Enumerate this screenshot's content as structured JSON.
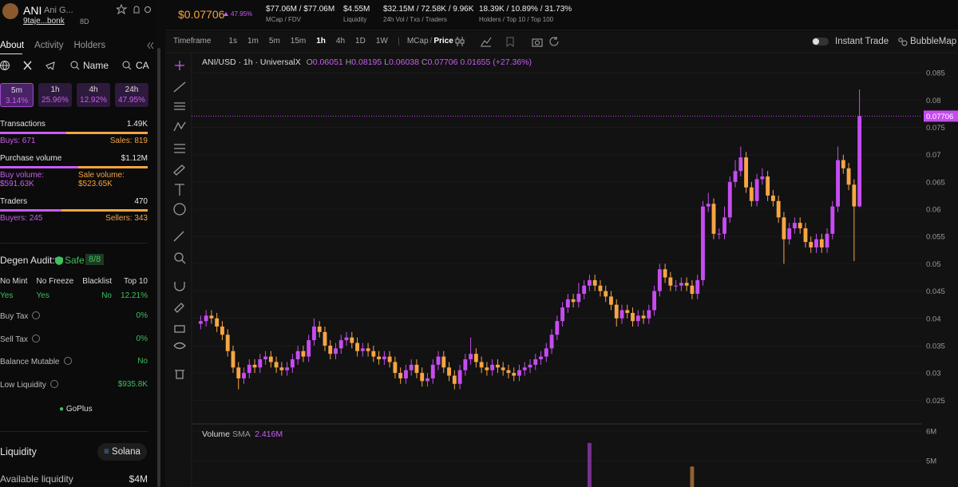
{
  "header": {
    "symbol": "ANI",
    "name": "Ani G...",
    "address": "9taje...bonk",
    "age": "8D",
    "price": "$0.07706",
    "change": "47.95%",
    "stats": [
      {
        "value": "$77.06M / $77.06M",
        "label": "MCap / FDV"
      },
      {
        "value": "$4.55M",
        "label": "Liquidity"
      },
      {
        "value": "$32.15M / 72.58K / 9.96K",
        "label": "24h Vol / Txs / Traders"
      },
      {
        "value": "18.39K / 10.89% / 31.73%",
        "label": "Holders / Top 10 / Top 100"
      }
    ]
  },
  "sidebar": {
    "tabs": [
      "About",
      "Activity",
      "Holders"
    ],
    "links": [
      "Name",
      "CA"
    ],
    "periods": [
      {
        "label": "5m",
        "change": "3.14%"
      },
      {
        "label": "1h",
        "change": "25.96%"
      },
      {
        "label": "4h",
        "change": "12.92%"
      },
      {
        "label": "24h",
        "change": "47.95%"
      }
    ],
    "transactions": {
      "label": "Transactions",
      "total": "1.49K",
      "buys_label": "Buys:",
      "buys": 671,
      "sales_label": "Sales:",
      "sales": 819
    },
    "purchase_volume": {
      "label": "Purchase volume",
      "total": "$1.12M",
      "buy_label": "Buy volume:",
      "buy": "$591.63K",
      "sale_label": "Sale volume:",
      "sale": "$523.65K"
    },
    "traders": {
      "label": "Traders",
      "total": 470,
      "buyers_label": "Buyers:",
      "buyers": 245,
      "sellers_label": "Sellers:",
      "sellers": 343
    },
    "audit": {
      "title": "Degen Audit:",
      "status": "Safe",
      "score": "8/8",
      "columns": [
        {
          "label": "No Mint",
          "value": "Yes"
        },
        {
          "label": "No Freeze",
          "value": "Yes"
        },
        {
          "label": "Blacklist",
          "value": "No"
        },
        {
          "label": "Top 10",
          "value": "12.21%"
        }
      ],
      "rows": [
        {
          "label": "Buy Tax",
          "value": "0%"
        },
        {
          "label": "Sell Tax",
          "value": "0%"
        },
        {
          "label": "Balance Mutable",
          "value": "No"
        },
        {
          "label": "Low Liquidity",
          "value": "$935.8K"
        }
      ],
      "provider": "GoPlus"
    },
    "liquidity": {
      "title": "Liquidity",
      "chain": "Solana",
      "available_label": "Available liquidity",
      "available": "$4M"
    }
  },
  "toolbar": {
    "timeframe_label": "Timeframe",
    "intervals": [
      "1s",
      "1m",
      "5m",
      "15m",
      "1h",
      "4h",
      "1D",
      "1W"
    ],
    "active_index": 4,
    "mode_a": "MCap",
    "separator": "/",
    "mode_b": "Price",
    "instant_trade": "Instant Trade",
    "bubblemap": "BubbleMap"
  },
  "chart_data": {
    "type": "candlestick",
    "title": "ANI/USD · 1h · UniversalX",
    "ohlc_labels": [
      "O",
      "H",
      "L",
      "C"
    ],
    "change": "0.01655 (+27.36%)",
    "up_color": "#c64cf2",
    "down_color": "#f7a545",
    "open": [
      0.039,
      0.0395,
      0.0405,
      0.04,
      0.0385,
      0.037,
      0.034,
      0.031,
      0.029,
      0.03,
      0.0315,
      0.031,
      0.0325,
      0.033,
      0.032,
      0.031,
      0.0305,
      0.031,
      0.0325,
      0.034,
      0.033,
      0.036,
      0.0385,
      0.0375,
      0.035,
      0.0335,
      0.0345,
      0.036,
      0.0365,
      0.0355,
      0.034,
      0.0345,
      0.034,
      0.033,
      0.0325,
      0.033,
      0.032,
      0.03,
      0.029,
      0.0305,
      0.0315,
      0.03,
      0.0285,
      0.029,
      0.0315,
      0.033,
      0.031,
      0.0295,
      0.028,
      0.0305,
      0.0325,
      0.0335,
      0.032,
      0.031,
      0.0305,
      0.0315,
      0.031,
      0.0305,
      0.03,
      0.0295,
      0.0305,
      0.031,
      0.0315,
      0.0325,
      0.033,
      0.0345,
      0.037,
      0.0395,
      0.042,
      0.0435,
      0.043,
      0.0445,
      0.046,
      0.047,
      0.046,
      0.045,
      0.044,
      0.0425,
      0.04,
      0.0415,
      0.041,
      0.0395,
      0.0405,
      0.04,
      0.0415,
      0.045,
      0.049,
      0.0475,
      0.046,
      0.046,
      0.0465,
      0.046,
      0.0445,
      0.047,
      0.0605,
      0.061,
      0.0555,
      0.0555,
      0.0585,
      0.065,
      0.067,
      0.0695,
      0.064,
      0.0615,
      0.0655,
      0.066,
      0.0625,
      0.0615,
      0.0585,
      0.0545,
      0.0565,
      0.0575,
      0.0565,
      0.054,
      0.053,
      0.0545,
      0.053,
      0.0555,
      0.0605,
      0.069,
      0.0675,
      0.0645,
      0.06051
    ],
    "high": [
      0.0405,
      0.0415,
      0.0415,
      0.041,
      0.0395,
      0.038,
      0.035,
      0.032,
      0.031,
      0.0325,
      0.0325,
      0.0335,
      0.034,
      0.034,
      0.033,
      0.032,
      0.032,
      0.0335,
      0.035,
      0.035,
      0.037,
      0.04,
      0.0395,
      0.0385,
      0.036,
      0.0355,
      0.037,
      0.0375,
      0.0375,
      0.0365,
      0.0355,
      0.0355,
      0.035,
      0.034,
      0.034,
      0.034,
      0.033,
      0.031,
      0.0315,
      0.0325,
      0.0325,
      0.031,
      0.03,
      0.0325,
      0.034,
      0.034,
      0.032,
      0.0305,
      0.0315,
      0.0335,
      0.0365,
      0.0345,
      0.033,
      0.032,
      0.0325,
      0.0325,
      0.032,
      0.0315,
      0.031,
      0.0315,
      0.032,
      0.0325,
      0.0335,
      0.034,
      0.0355,
      0.038,
      0.0405,
      0.043,
      0.0445,
      0.0445,
      0.0465,
      0.047,
      0.048,
      0.048,
      0.047,
      0.046,
      0.045,
      0.0435,
      0.0425,
      0.0425,
      0.042,
      0.0415,
      0.0415,
      0.0425,
      0.046,
      0.05,
      0.05,
      0.0485,
      0.047,
      0.0475,
      0.0475,
      0.047,
      0.048,
      0.0615,
      0.063,
      0.062,
      0.0565,
      0.0605,
      0.066,
      0.069,
      0.0715,
      0.0705,
      0.065,
      0.0665,
      0.0675,
      0.067,
      0.0635,
      0.0625,
      0.0595,
      0.0575,
      0.0585,
      0.0585,
      0.0575,
      0.055,
      0.0555,
      0.0555,
      0.0565,
      0.0615,
      0.0715,
      0.07,
      0.0685,
      0.0655,
      0.08195
    ],
    "low": [
      0.038,
      0.0385,
      0.039,
      0.0375,
      0.036,
      0.033,
      0.03,
      0.027,
      0.028,
      0.029,
      0.03,
      0.03,
      0.0315,
      0.031,
      0.03,
      0.0295,
      0.0295,
      0.03,
      0.0315,
      0.032,
      0.032,
      0.035,
      0.0365,
      0.034,
      0.0325,
      0.0325,
      0.0335,
      0.035,
      0.0345,
      0.033,
      0.033,
      0.033,
      0.032,
      0.0315,
      0.0315,
      0.031,
      0.029,
      0.028,
      0.028,
      0.0295,
      0.029,
      0.0275,
      0.0275,
      0.028,
      0.0305,
      0.03,
      0.0285,
      0.027,
      0.027,
      0.0295,
      0.0315,
      0.031,
      0.03,
      0.0295,
      0.0295,
      0.03,
      0.0295,
      0.029,
      0.0285,
      0.0285,
      0.0295,
      0.03,
      0.0305,
      0.0315,
      0.032,
      0.0335,
      0.036,
      0.0385,
      0.041,
      0.042,
      0.042,
      0.0435,
      0.045,
      0.045,
      0.044,
      0.043,
      0.0415,
      0.0385,
      0.039,
      0.04,
      0.0385,
      0.0385,
      0.039,
      0.039,
      0.0405,
      0.044,
      0.0465,
      0.045,
      0.045,
      0.045,
      0.045,
      0.0435,
      0.0435,
      0.046,
      0.0595,
      0.0545,
      0.0545,
      0.0545,
      0.0575,
      0.064,
      0.066,
      0.063,
      0.0605,
      0.0605,
      0.0645,
      0.0615,
      0.0605,
      0.0575,
      0.05,
      0.0535,
      0.0555,
      0.0555,
      0.053,
      0.052,
      0.052,
      0.052,
      0.052,
      0.0545,
      0.0595,
      0.0665,
      0.0635,
      0.0505,
      0.06038
    ],
    "close": [
      0.0395,
      0.0405,
      0.04,
      0.0385,
      0.037,
      0.034,
      0.031,
      0.029,
      0.03,
      0.0315,
      0.031,
      0.0325,
      0.033,
      0.032,
      0.031,
      0.0305,
      0.031,
      0.0325,
      0.034,
      0.033,
      0.036,
      0.0385,
      0.0375,
      0.035,
      0.0335,
      0.0345,
      0.036,
      0.0365,
      0.0355,
      0.034,
      0.0345,
      0.034,
      0.033,
      0.0325,
      0.033,
      0.032,
      0.03,
      0.029,
      0.0305,
      0.0315,
      0.03,
      0.0285,
      0.029,
      0.0315,
      0.033,
      0.031,
      0.0295,
      0.028,
      0.0305,
      0.0325,
      0.0335,
      0.032,
      0.031,
      0.0305,
      0.0315,
      0.031,
      0.0305,
      0.03,
      0.0295,
      0.0305,
      0.031,
      0.0315,
      0.0325,
      0.033,
      0.0345,
      0.037,
      0.0395,
      0.042,
      0.0435,
      0.043,
      0.0445,
      0.046,
      0.047,
      0.046,
      0.045,
      0.044,
      0.0425,
      0.04,
      0.0415,
      0.041,
      0.0395,
      0.0405,
      0.04,
      0.0415,
      0.045,
      0.049,
      0.0475,
      0.046,
      0.046,
      0.0465,
      0.046,
      0.0445,
      0.047,
      0.0605,
      0.061,
      0.0555,
      0.0555,
      0.0585,
      0.065,
      0.067,
      0.0695,
      0.064,
      0.0615,
      0.0655,
      0.066,
      0.0625,
      0.0615,
      0.0585,
      0.0545,
      0.0565,
      0.0575,
      0.0565,
      0.054,
      0.053,
      0.0545,
      0.053,
      0.0555,
      0.0605,
      0.069,
      0.0675,
      0.0645,
      0.06051,
      0.07706
    ],
    "ylim": [
      0.0208,
      0.0881
    ],
    "yticks": [
      0.085,
      0.08,
      0.075,
      0.07,
      0.065,
      0.06,
      0.055,
      0.05,
      0.045,
      0.04,
      0.035,
      0.03,
      0.025
    ],
    "grid": true,
    "last_price_line": true,
    "volume": {
      "label": "Volume",
      "sma_label": "SMA",
      "sma": "2.416M",
      "ylim": [
        4108000,
        6189000
      ],
      "yticks": [
        {
          "value": 6000000,
          "label": "6M"
        },
        {
          "value": 5000000,
          "label": "5M"
        }
      ],
      "values": [
        null,
        null,
        null,
        null,
        null,
        null,
        null,
        null,
        null,
        null,
        null,
        null,
        null,
        null,
        null,
        null,
        null,
        null,
        null,
        null,
        null,
        null,
        null,
        null,
        null,
        null,
        null,
        null,
        null,
        null,
        null,
        null,
        null,
        null,
        null,
        null,
        null,
        null,
        null,
        null,
        null,
        null,
        null,
        null,
        null,
        null,
        null,
        null,
        null,
        null,
        null,
        null,
        null,
        null,
        null,
        null,
        null,
        null,
        null,
        null,
        null,
        null,
        null,
        null,
        null,
        null,
        null,
        null,
        null,
        null,
        null,
        null,
        5600000,
        null,
        null,
        null,
        null,
        null,
        null,
        null,
        null,
        null,
        null,
        null,
        null,
        null,
        null,
        null,
        null,
        null,
        null,
        4800000,
        null,
        null,
        null,
        null,
        null,
        null,
        null,
        null,
        null,
        null,
        null,
        null,
        null,
        null,
        null,
        null,
        null,
        null,
        null,
        null,
        null,
        null,
        null,
        null,
        null,
        null,
        null,
        null,
        null,
        null,
        null
      ]
    }
  }
}
